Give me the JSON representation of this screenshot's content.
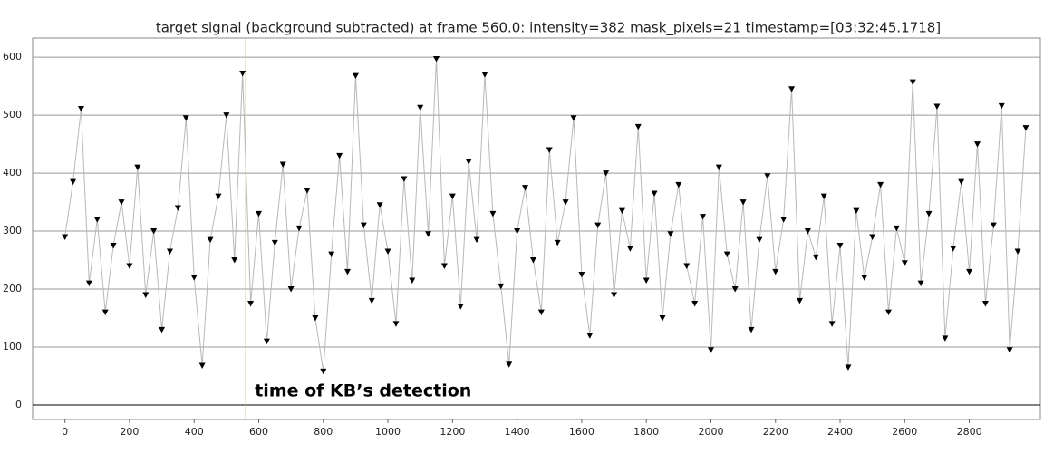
{
  "chart_data": {
    "type": "line",
    "title": "target signal (background subtracted) at frame 560.0: intensity=382 mask_pixels=21 timestamp=[03:32:45.1718]",
    "x": [
      0,
      25,
      50,
      75,
      100,
      125,
      150,
      175,
      200,
      225,
      250,
      275,
      300,
      325,
      350,
      375,
      400,
      425,
      450,
      475,
      500,
      525,
      550,
      575,
      600,
      625,
      650,
      675,
      700,
      725,
      750,
      775,
      800,
      825,
      850,
      875,
      900,
      925,
      950,
      975,
      1000,
      1025,
      1050,
      1075,
      1100,
      1125,
      1150,
      1175,
      1200,
      1225,
      1250,
      1275,
      1300,
      1325,
      1350,
      1375,
      1400,
      1425,
      1450,
      1475,
      1500,
      1525,
      1550,
      1575,
      1600,
      1625,
      1650,
      1675,
      1700,
      1725,
      1750,
      1775,
      1800,
      1825,
      1850,
      1875,
      1900,
      1925,
      1950,
      1975,
      2000,
      2025,
      2050,
      2075,
      2100,
      2125,
      2150,
      2175,
      2200,
      2225,
      2250,
      2275,
      2300,
      2325,
      2350,
      2375,
      2400,
      2425,
      2450,
      2475,
      2500,
      2525,
      2550,
      2575,
      2600,
      2625,
      2650,
      2675,
      2700,
      2725,
      2750,
      2775,
      2800,
      2825,
      2850,
      2875,
      2900,
      2925,
      2950,
      2975
    ],
    "values": [
      290,
      385,
      511,
      210,
      320,
      160,
      275,
      350,
      240,
      410,
      190,
      300,
      130,
      265,
      340,
      495,
      220,
      68,
      285,
      360,
      500,
      250,
      572,
      175,
      330,
      110,
      280,
      415,
      200,
      305,
      370,
      150,
      58,
      260,
      430,
      230,
      568,
      310,
      180,
      345,
      265,
      140,
      390,
      215,
      513,
      295,
      597,
      240,
      360,
      170,
      420,
      285,
      570,
      330,
      205,
      70,
      300,
      375,
      250,
      160,
      440,
      280,
      350,
      495,
      225,
      120,
      310,
      400,
      190,
      335,
      270,
      480,
      215,
      365,
      150,
      295,
      380,
      240,
      175,
      325,
      95,
      410,
      260,
      200,
      350,
      130,
      285,
      395,
      230,
      320,
      545,
      180,
      300,
      255,
      360,
      140,
      275,
      65,
      335,
      220,
      290,
      380,
      160,
      305,
      245,
      557,
      210,
      330,
      515,
      115,
      270,
      385,
      230,
      450,
      175,
      310,
      516,
      95,
      265,
      478
    ],
    "line_color": "#b8b8b8",
    "marker_color": "#000000",
    "xlim": [
      -100,
      3020
    ],
    "ylim": [
      -25,
      633
    ],
    "xticks": [
      0,
      200,
      400,
      600,
      800,
      1000,
      1200,
      1400,
      1600,
      1800,
      2000,
      2200,
      2400,
      2600,
      2800
    ],
    "yticks": [
      0,
      100,
      200,
      300,
      400,
      500,
      600
    ],
    "grid": true,
    "vline": {
      "value": 560,
      "color": "#c8c080",
      "label": "time of KB’s detection"
    }
  }
}
